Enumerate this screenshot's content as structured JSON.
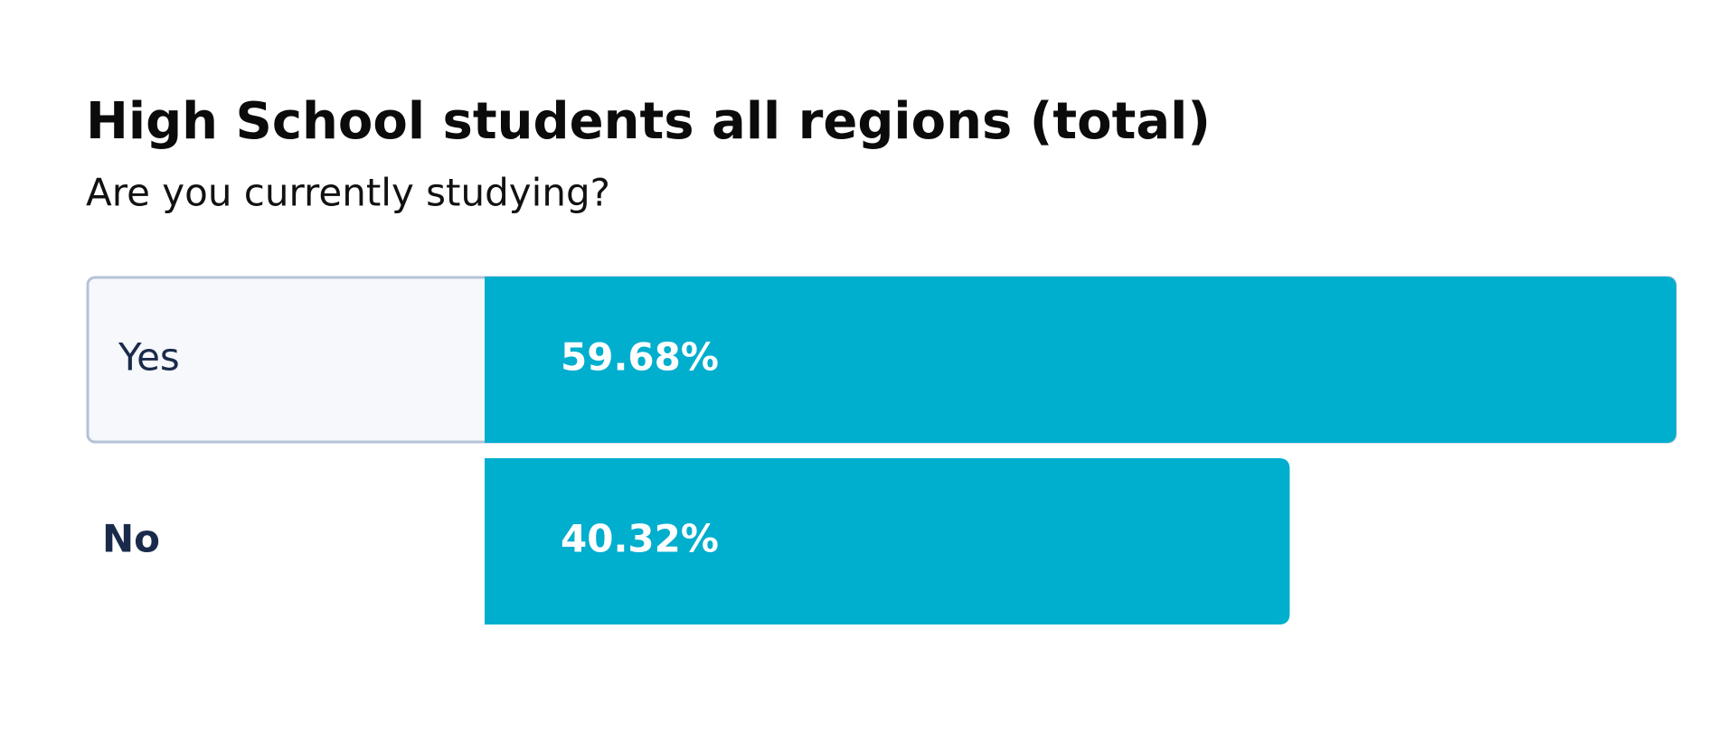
{
  "chart_data": {
    "type": "bar",
    "orientation": "horizontal",
    "title": "High School students all regions (total)",
    "subtitle": "Are you currently studying?",
    "categories": [
      "Yes",
      "No"
    ],
    "values": [
      59.68,
      40.32
    ],
    "value_labels": [
      "59.68%",
      "40.32%"
    ],
    "color": "#00aece"
  }
}
